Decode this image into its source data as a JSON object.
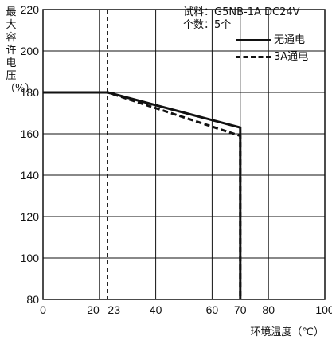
{
  "chart_data": {
    "type": "line",
    "ylabel": "最大容许电压（%）",
    "xlabel": "环境温度（℃）",
    "xlim": [
      0,
      100
    ],
    "ylim": [
      80,
      220
    ],
    "x_ticks": [
      0,
      20,
      23,
      40,
      60,
      70,
      80,
      100
    ],
    "x_tick_labels": [
      "0",
      "20",
      "23",
      "40",
      "60",
      "70",
      "80",
      "100"
    ],
    "y_ticks": [
      80,
      100,
      120,
      140,
      160,
      180,
      200,
      220
    ],
    "y_tick_labels": [
      "80",
      "100",
      "120",
      "140",
      "160",
      "180",
      "200",
      "220"
    ],
    "grid": true,
    "series": [
      {
        "name": "无通电",
        "style": "solid",
        "x": [
          0,
          23,
          70,
          70
        ],
        "y": [
          180,
          180,
          163,
          80
        ]
      },
      {
        "name": "3A通电",
        "style": "dashed",
        "x": [
          0,
          23,
          70,
          70
        ],
        "y": [
          180,
          180,
          159,
          80
        ]
      }
    ],
    "info": {
      "sample_label": "试料：",
      "sample_value": "G5NB-1A  DC24V",
      "count_label": "个数：",
      "count_value": "5个"
    }
  }
}
